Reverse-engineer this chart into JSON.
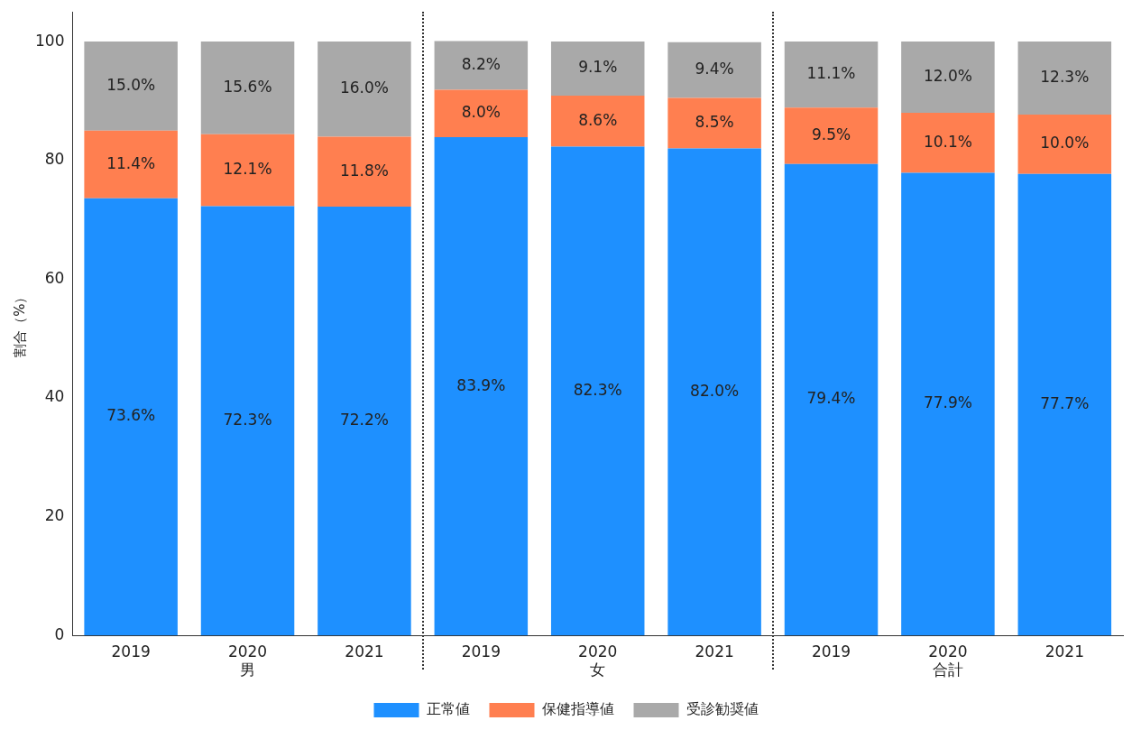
{
  "chart_data": {
    "type": "bar",
    "stacked": true,
    "ylabel": "割合（%）",
    "categories": [
      "2019",
      "2020\n男",
      "2021",
      "2019",
      "2020\n女",
      "2021",
      "2019",
      "2020\n合計",
      "2021"
    ],
    "series": [
      {
        "name": "正常値",
        "color": "#1e90ff",
        "values": [
          73.6,
          72.3,
          72.2,
          83.9,
          82.3,
          82.0,
          79.4,
          77.9,
          77.7
        ],
        "value_labels": [
          "73.6%",
          "72.3%",
          "72.2%",
          "83.9%",
          "82.3%",
          "82.0%",
          "79.4%",
          "77.9%",
          "77.7%"
        ]
      },
      {
        "name": "保健指導値",
        "color": "#ff7f50",
        "values": [
          11.4,
          12.1,
          11.8,
          8.0,
          8.6,
          8.5,
          9.5,
          10.1,
          10.0
        ],
        "value_labels": [
          "11.4%",
          "12.1%",
          "11.8%",
          "8.0%",
          "8.6%",
          "8.5%",
          "9.5%",
          "10.1%",
          "10.0%"
        ]
      },
      {
        "name": "受診勧奨値",
        "color": "#a9a9a9",
        "values": [
          15.0,
          15.6,
          16.0,
          8.2,
          9.1,
          9.4,
          11.1,
          12.0,
          12.3
        ],
        "value_labels": [
          "15.0%",
          "15.6%",
          "16.0%",
          "8.2%",
          "9.1%",
          "9.4%",
          "11.1%",
          "12.0%",
          "12.3%"
        ]
      }
    ],
    "ylim": [
      0,
      105
    ],
    "yticks": [
      0,
      20,
      40,
      60,
      80,
      100
    ],
    "grid": false,
    "legend": "bottom"
  }
}
